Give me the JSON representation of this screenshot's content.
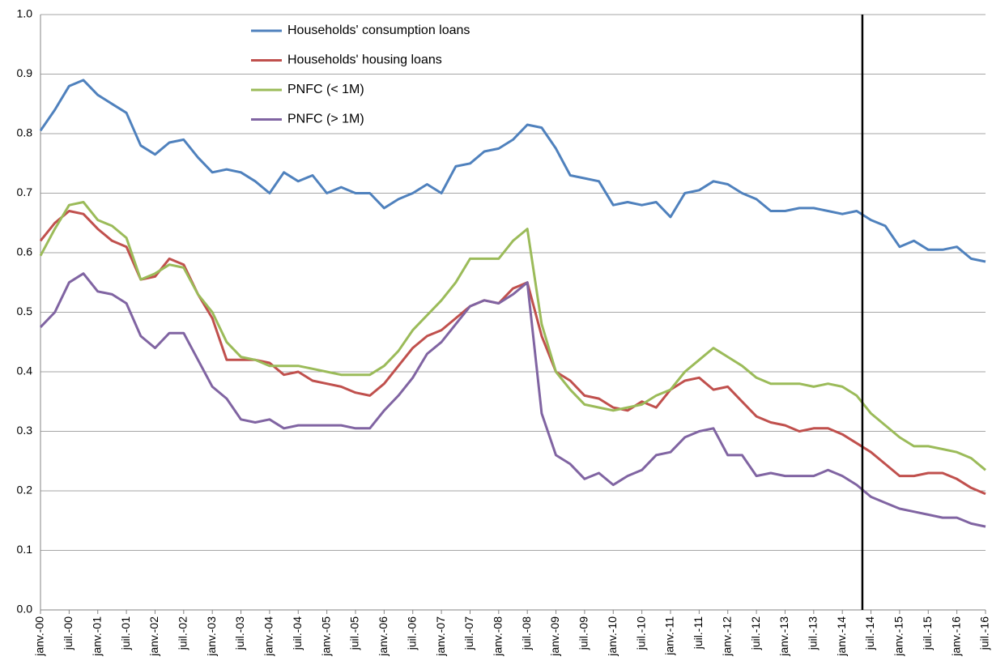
{
  "chart_data": {
    "type": "line",
    "categories": [
      "janv.-00",
      null,
      "juil.-00",
      null,
      "janv.-01",
      null,
      "juil.-01",
      null,
      "janv.-02",
      null,
      "juil.-02",
      null,
      "janv.-03",
      null,
      "juil.-03",
      null,
      "janv.-04",
      null,
      "juil.-04",
      null,
      "janv.-05",
      null,
      "juil.-05",
      null,
      "janv.-06",
      null,
      "juil.-06",
      null,
      "janv.-07",
      null,
      "juil.-07",
      null,
      "janv.-08",
      null,
      "juil.-08",
      null,
      "janv.-09",
      null,
      "juil.-09",
      null,
      "janv.-10",
      null,
      "juil.-10",
      null,
      "janv.-11",
      null,
      "juil.-11",
      null,
      "janv.-12",
      null,
      "juil.-12",
      null,
      "janv.-13",
      null,
      "juil.-13",
      null,
      "janv.-14",
      null,
      "juil.-14",
      null,
      "janv.-15",
      null,
      "juil.-15",
      null,
      "janv.-16",
      null,
      "juil.-16"
    ],
    "series": [
      {
        "name": "Households' consumption loans",
        "color": "#4f81bd",
        "values": [
          0.805,
          0.84,
          0.88,
          0.89,
          0.865,
          0.85,
          0.835,
          0.78,
          0.765,
          0.785,
          0.79,
          0.76,
          0.735,
          0.74,
          0.735,
          0.72,
          0.7,
          0.735,
          0.72,
          0.73,
          0.7,
          0.71,
          0.7,
          0.7,
          0.675,
          0.69,
          0.7,
          0.715,
          0.7,
          0.745,
          0.75,
          0.77,
          0.775,
          0.79,
          0.815,
          0.81,
          0.775,
          0.73,
          0.725,
          0.72,
          0.68,
          0.685,
          0.68,
          0.685,
          0.66,
          0.7,
          0.705,
          0.72,
          0.715,
          0.7,
          0.69,
          0.67,
          0.67,
          0.675,
          0.675,
          0.67,
          0.665,
          0.67,
          0.655,
          0.645,
          0.61,
          0.62,
          0.605,
          0.605,
          0.61,
          0.59,
          0.585
        ]
      },
      {
        "name": "Households' housing loans",
        "color": "#c0504d",
        "values": [
          0.62,
          0.65,
          0.67,
          0.665,
          0.64,
          0.62,
          0.61,
          0.555,
          0.56,
          0.59,
          0.58,
          0.53,
          0.49,
          0.42,
          0.42,
          0.42,
          0.415,
          0.395,
          0.4,
          0.385,
          0.38,
          0.375,
          0.365,
          0.36,
          0.38,
          0.41,
          0.44,
          0.46,
          0.47,
          0.49,
          0.51,
          0.52,
          0.515,
          0.54,
          0.55,
          0.46,
          0.4,
          0.385,
          0.36,
          0.355,
          0.34,
          0.335,
          0.35,
          0.34,
          0.37,
          0.385,
          0.39,
          0.37,
          0.375,
          0.35,
          0.325,
          0.315,
          0.31,
          0.3,
          0.305,
          0.305,
          0.295,
          0.28,
          0.265,
          0.245,
          0.225,
          0.225,
          0.23,
          0.23,
          0.22,
          0.205,
          0.195
        ]
      },
      {
        "name": "PNFC (< 1M)",
        "color": "#9bbb59",
        "values": [
          0.595,
          0.64,
          0.68,
          0.685,
          0.655,
          0.645,
          0.625,
          0.555,
          0.565,
          0.58,
          0.575,
          0.53,
          0.5,
          0.45,
          0.425,
          0.42,
          0.41,
          0.41,
          0.41,
          0.405,
          0.4,
          0.395,
          0.395,
          0.395,
          0.41,
          0.435,
          0.47,
          0.495,
          0.52,
          0.55,
          0.59,
          0.59,
          0.59,
          0.62,
          0.64,
          0.48,
          0.4,
          0.37,
          0.345,
          0.34,
          0.335,
          0.34,
          0.345,
          0.36,
          0.37,
          0.4,
          0.42,
          0.44,
          0.425,
          0.41,
          0.39,
          0.38,
          0.38,
          0.38,
          0.375,
          0.38,
          0.375,
          0.36,
          0.33,
          0.31,
          0.29,
          0.275,
          0.275,
          0.27,
          0.265,
          0.255,
          0.235
        ]
      },
      {
        "name": "PNFC (> 1M)",
        "color": "#8064a2",
        "values": [
          0.475,
          0.5,
          0.55,
          0.565,
          0.535,
          0.53,
          0.515,
          0.46,
          0.44,
          0.465,
          0.465,
          0.42,
          0.375,
          0.355,
          0.32,
          0.315,
          0.32,
          0.305,
          0.31,
          0.31,
          0.31,
          0.31,
          0.305,
          0.305,
          0.335,
          0.36,
          0.39,
          0.43,
          0.45,
          0.48,
          0.51,
          0.52,
          0.515,
          0.53,
          0.55,
          0.33,
          0.26,
          0.245,
          0.22,
          0.23,
          0.21,
          0.225,
          0.235,
          0.26,
          0.265,
          0.29,
          0.3,
          0.305,
          0.26,
          0.26,
          0.225,
          0.23,
          0.225,
          0.225,
          0.225,
          0.235,
          0.225,
          0.21,
          0.19,
          0.18,
          0.17,
          0.165,
          0.16,
          0.155,
          0.155,
          0.145,
          0.14
        ]
      }
    ],
    "ylim": [
      0,
      1
    ],
    "yticks": [
      {
        "value": 0,
        "label": "0.0"
      },
      0.1,
      0.2,
      0.3,
      0.4,
      0.5,
      0.6,
      0.7,
      0.8,
      0.9,
      {
        "value": 1,
        "label": "1.0"
      }
    ],
    "grid": true,
    "legend": "top",
    "vline": 57.4
  }
}
